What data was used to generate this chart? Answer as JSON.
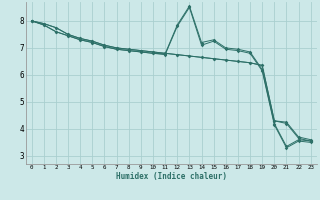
{
  "xlabel": "Humidex (Indice chaleur)",
  "bg_color": "#cce8e8",
  "grid_color": "#aacfcf",
  "line_color": "#2d7068",
  "xlim": [
    -0.5,
    23.5
  ],
  "ylim": [
    2.7,
    8.7
  ],
  "yticks": [
    3,
    4,
    5,
    6,
    7,
    8
  ],
  "xticks": [
    0,
    1,
    2,
    3,
    4,
    5,
    6,
    7,
    8,
    9,
    10,
    11,
    12,
    13,
    14,
    15,
    16,
    17,
    18,
    19,
    20,
    21,
    22,
    23
  ],
  "series": [
    [
      8.0,
      7.85,
      7.6,
      7.45,
      7.3,
      7.2,
      7.05,
      6.95,
      6.9,
      6.85,
      6.8,
      6.78,
      7.85,
      8.55,
      7.2,
      7.3,
      7.0,
      6.95,
      6.85,
      6.2,
      4.2,
      3.35,
      3.6,
      3.55
    ],
    [
      8.0,
      7.85,
      7.6,
      7.45,
      7.3,
      7.2,
      7.05,
      6.95,
      6.9,
      6.85,
      6.8,
      6.75,
      7.8,
      8.5,
      7.1,
      7.25,
      6.95,
      6.9,
      6.8,
      6.15,
      4.15,
      3.3,
      3.55,
      3.5
    ],
    [
      8.0,
      7.9,
      7.75,
      7.5,
      7.35,
      7.25,
      7.1,
      7.0,
      6.95,
      6.9,
      6.85,
      6.8,
      6.75,
      6.7,
      6.65,
      6.6,
      6.55,
      6.5,
      6.45,
      6.35,
      4.3,
      4.25,
      3.7,
      3.6
    ],
    [
      8.0,
      7.9,
      7.75,
      7.5,
      7.35,
      7.25,
      7.1,
      7.0,
      6.95,
      6.9,
      6.85,
      6.8,
      6.75,
      6.7,
      6.65,
      6.6,
      6.55,
      6.5,
      6.45,
      6.35,
      4.3,
      4.2,
      3.65,
      3.55
    ]
  ]
}
